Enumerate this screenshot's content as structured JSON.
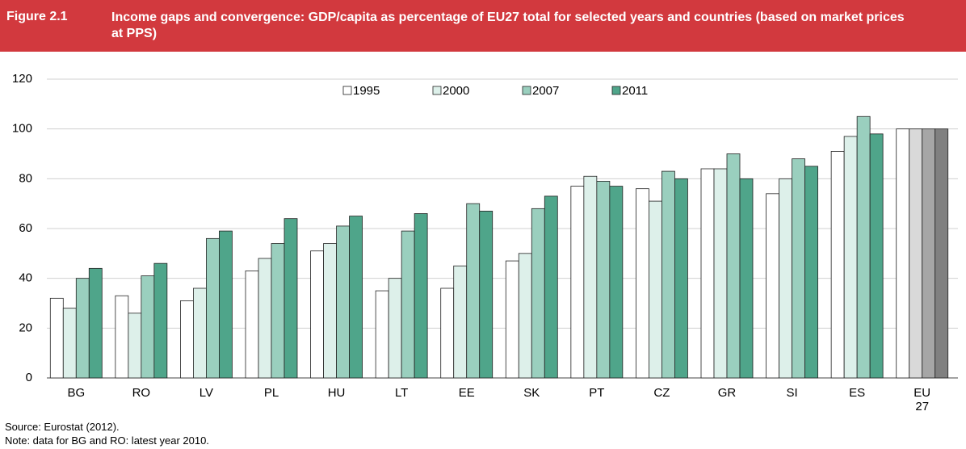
{
  "figure_label": "Figure 2.1",
  "chart_data": {
    "type": "bar",
    "title": "Income gaps and convergence: GDP/capita as percentage of EU27 total for selected years and countries (based on market prices at PPS)",
    "categories": [
      "BG",
      "RO",
      "LV",
      "PL",
      "HU",
      "LT",
      "EE",
      "SK",
      "PT",
      "CZ",
      "GR",
      "SI",
      "ES",
      "EU 27"
    ],
    "series": [
      {
        "name": "1995",
        "color": "#ffffff",
        "colors": [
          "#ffffff",
          "#ffffff",
          "#ffffff",
          "#ffffff",
          "#ffffff",
          "#ffffff",
          "#ffffff",
          "#ffffff",
          "#ffffff",
          "#ffffff",
          "#ffffff",
          "#ffffff",
          "#ffffff",
          "#ffffff"
        ],
        "values": [
          32,
          33,
          31,
          43,
          51,
          35,
          36,
          47,
          77,
          76,
          84,
          74,
          91,
          100
        ]
      },
      {
        "name": "2000",
        "color": "#ddf0ea",
        "colors": [
          "#ddf0ea",
          "#ddf0ea",
          "#ddf0ea",
          "#ddf0ea",
          "#ddf0ea",
          "#ddf0ea",
          "#ddf0ea",
          "#ddf0ea",
          "#ddf0ea",
          "#ddf0ea",
          "#ddf0ea",
          "#ddf0ea",
          "#ddf0ea",
          "#d9d9d9"
        ],
        "values": [
          28,
          26,
          36,
          48,
          54,
          40,
          45,
          50,
          81,
          71,
          84,
          80,
          97,
          100
        ]
      },
      {
        "name": "2007",
        "color": "#9acfbe",
        "colors": [
          "#9acfbe",
          "#9acfbe",
          "#9acfbe",
          "#9acfbe",
          "#9acfbe",
          "#9acfbe",
          "#9acfbe",
          "#9acfbe",
          "#9acfbe",
          "#9acfbe",
          "#9acfbe",
          "#9acfbe",
          "#9acfbe",
          "#a6a6a6"
        ],
        "values": [
          40,
          41,
          56,
          54,
          61,
          59,
          70,
          68,
          79,
          83,
          90,
          88,
          105,
          100
        ]
      },
      {
        "name": "2011",
        "color": "#4fa58a",
        "colors": [
          "#4fa58a",
          "#4fa58a",
          "#4fa58a",
          "#4fa58a",
          "#4fa58a",
          "#4fa58a",
          "#4fa58a",
          "#4fa58a",
          "#4fa58a",
          "#4fa58a",
          "#4fa58a",
          "#4fa58a",
          "#4fa58a",
          "#808080"
        ],
        "values": [
          44,
          46,
          59,
          64,
          65,
          66,
          67,
          73,
          77,
          80,
          80,
          85,
          98,
          100
        ]
      }
    ],
    "ylim": [
      0,
      120
    ],
    "yticks": [
      0,
      20,
      40,
      60,
      80,
      100,
      120
    ],
    "grid": true
  },
  "notes": [
    "Source: Eurostat (2012).",
    "Note: data for BG and RO: latest year 2010."
  ]
}
